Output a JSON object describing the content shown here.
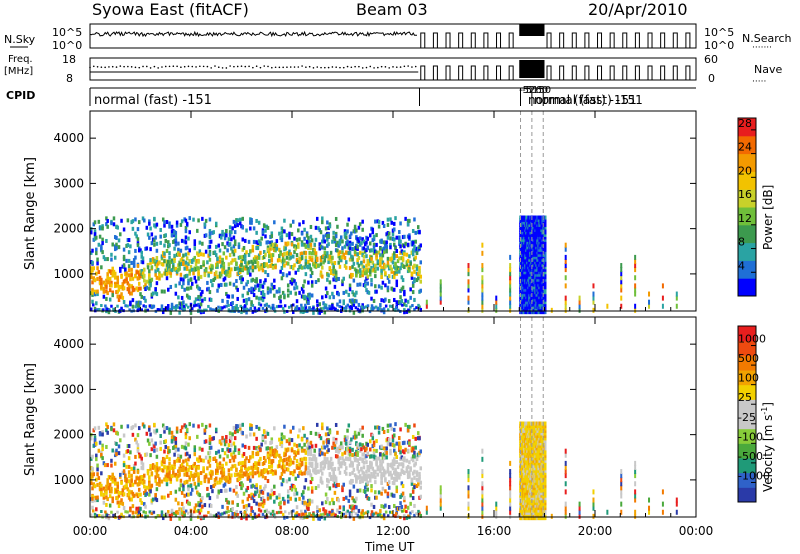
{
  "header": {
    "title": "Syowa East (fitACF)",
    "beam": "Beam 03",
    "date": "20/Apr/2010"
  },
  "params": {
    "left_labels": [
      "N.Sky",
      "Freq.",
      "[MHz]",
      "CPID"
    ],
    "right_labels": [
      "N.Search",
      "Nave"
    ],
    "nsky_ticks": [
      "10^5",
      "10^0"
    ],
    "nsearch_ticks": [
      "10^5",
      "10^0"
    ],
    "freq_ticks": [
      "18",
      "8"
    ],
    "nave_ticks": [
      "60",
      "0"
    ],
    "cpid_main": "normal (fast) -151",
    "cpid_overlap_a": "-5260",
    "cpid_overlap_b": "-5150",
    "cpid_overlap_c": "normal (fast) -151",
    "cpid_overlap_d": "normal (fast) -151"
  },
  "chart_data": [
    {
      "type": "heatmap",
      "panel": "power",
      "ylabel": "Slant Range [km]",
      "yticks": [
        1000,
        2000,
        3000,
        4000
      ],
      "ylim": [
        180,
        4600
      ],
      "x_tick_labels": [
        "00:00",
        "04:00",
        "08:00",
        "12:00",
        "16:00",
        "20:00",
        "00:00"
      ],
      "xlim_hours": [
        0,
        24
      ],
      "colorbar": {
        "label": "Power [dB]",
        "ticks": [
          4,
          8,
          12,
          16,
          20,
          24,
          28
        ],
        "range": [
          0,
          30
        ],
        "colors": [
          "#0000ff",
          "#1f6fd6",
          "#2aa3a3",
          "#3c9a4e",
          "#6fbf3a",
          "#c8d12a",
          "#f2c200",
          "#f39a00",
          "#f26a00",
          "#e81e1e"
        ]
      }
    },
    {
      "type": "heatmap",
      "panel": "velocity",
      "ylabel": "Slant Range [km]",
      "yticks": [
        1000,
        2000,
        3000,
        4000
      ],
      "ylim": [
        180,
        4600
      ],
      "x_tick_labels": [
        "00:00",
        "04:00",
        "08:00",
        "12:00",
        "16:00",
        "20:00",
        "00:00"
      ],
      "xlim_hours": [
        0,
        24
      ],
      "xlabel": "Time UT",
      "colorbar": {
        "label": "Velocity [m s",
        "label_sup": "-1",
        "label_end": "]",
        "ticks": [
          "1000",
          "500",
          "100",
          "25",
          "-25",
          "-100",
          "-500",
          "-1000"
        ],
        "colors": [
          "#2a3aa8",
          "#2f62c9",
          "#1f9a78",
          "#4aa93c",
          "#88cc3a",
          "#c8c8c8",
          "#c8c8c8",
          "#f2d000",
          "#f2a300",
          "#f27a00",
          "#ee4a10",
          "#e81e1e"
        ]
      }
    }
  ]
}
